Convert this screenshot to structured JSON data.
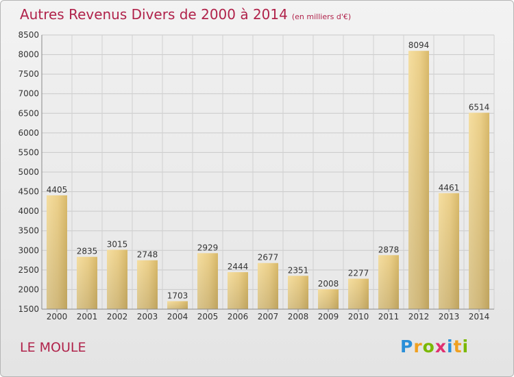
{
  "chart_data": {
    "type": "bar",
    "title": "Autres Revenus Divers de 2000 à 2014",
    "subtitle": "(en milliers d'€)",
    "categories": [
      "2000",
      "2001",
      "2002",
      "2003",
      "2004",
      "2005",
      "2006",
      "2007",
      "2008",
      "2009",
      "2010",
      "2011",
      "2012",
      "2013",
      "2014"
    ],
    "values": [
      4405,
      2835,
      3015,
      2748,
      1703,
      2929,
      2444,
      2677,
      2351,
      2008,
      2277,
      2878,
      8094,
      4461,
      6514
    ],
    "ylim": [
      1500,
      8500
    ],
    "yticks": [
      1500,
      2000,
      2500,
      3000,
      3500,
      4000,
      4500,
      5000,
      5500,
      6000,
      6500,
      7000,
      7500,
      8000,
      8500
    ],
    "grid": true,
    "bar_color": "#e8cd85",
    "title_color": "#b0224a"
  },
  "footer": {
    "commune": "LE MOULE",
    "logo_letters": [
      "P",
      "r",
      "o",
      "x",
      "i",
      "t",
      "i"
    ],
    "logo_colors": [
      "#2a8fd8",
      "#f0a020",
      "#7ab800",
      "#e03070",
      "#2a8fd8",
      "#f0a020",
      "#7ab800"
    ]
  }
}
